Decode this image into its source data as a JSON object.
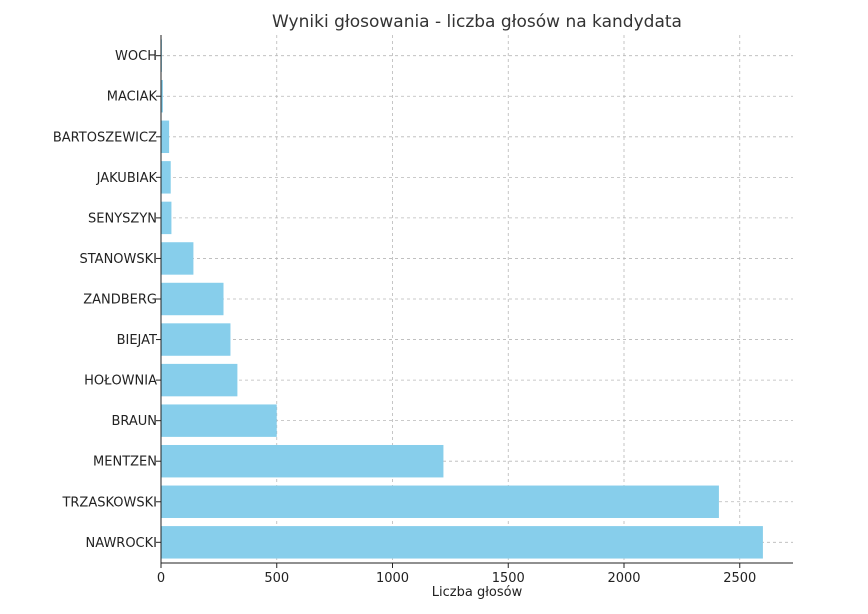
{
  "chart_data": {
    "type": "bar",
    "orientation": "horizontal",
    "title": "Wyniki głosowania - liczba głosów na kandydata",
    "xlabel": "Liczba głosów",
    "ylabel": "",
    "categories": [
      "NAWROCKI",
      "TRZASKOWSKI",
      "MENTZEN",
      "BRAUN",
      "HOŁOWNIA",
      "BIEJAT",
      "ZANDBERG",
      "STANOWSKI",
      "SENYSZYN",
      "JAKUBIAK",
      "BARTOSZEWICZ",
      "MACIAK",
      "WOCH"
    ],
    "values": [
      2600,
      2410,
      1220,
      500,
      330,
      300,
      270,
      140,
      45,
      42,
      35,
      8,
      4
    ],
    "xlim": [
      0,
      2730
    ],
    "xticks": [
      0,
      500,
      1000,
      1500,
      2000,
      2500
    ],
    "grid": true,
    "bar_color": "#87ceeb"
  }
}
